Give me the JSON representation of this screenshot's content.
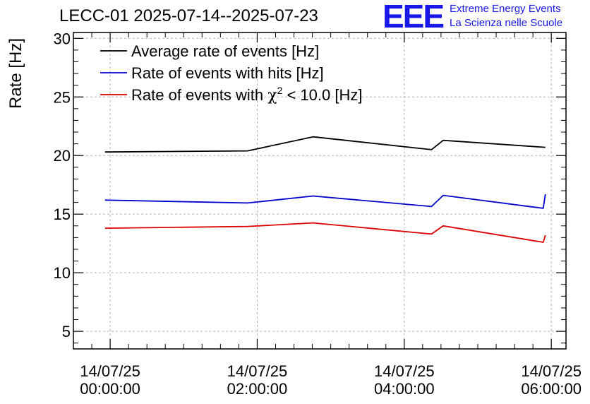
{
  "header": {
    "title": "LECC-01 2025-07-14--2025-07-23",
    "logo_letters": "EEE",
    "logo_line1": "Extreme Energy Events",
    "logo_line2": "La Scienza nelle Scuole"
  },
  "chart_data": {
    "type": "line",
    "title": "LECC-01 2025-07-14--2025-07-23",
    "xlabel": "",
    "ylabel": "Rate [Hz]",
    "ylim": [
      3.5,
      30.5
    ],
    "xlim": [
      -0.5,
      6.2
    ],
    "x_unit": "hours since 14/07/25 00:00:00",
    "grid": true,
    "legend_position": "top-left",
    "y_ticks": [
      5,
      10,
      15,
      20,
      25,
      30
    ],
    "x_ticks": [
      {
        "value": 0,
        "line1": "14/07/25",
        "line2": "00:00:00"
      },
      {
        "value": 2,
        "line1": "14/07/25",
        "line2": "02:00:00"
      },
      {
        "value": 4,
        "line1": "14/07/25",
        "line2": "04:00:00"
      },
      {
        "value": 6,
        "line1": "14/07/25",
        "line2": "06:00:00"
      }
    ],
    "series": [
      {
        "name": "Average rate of events [Hz]",
        "color": "#000000",
        "points": [
          [
            -0.07,
            20.3
          ],
          [
            1.87,
            20.4
          ],
          [
            2.76,
            21.6
          ],
          [
            4.37,
            20.5
          ],
          [
            4.53,
            21.3
          ],
          [
            5.92,
            20.7
          ]
        ]
      },
      {
        "name": "Rate of events with hits [Hz]",
        "color": "#0000cc",
        "points": [
          [
            -0.07,
            16.2
          ],
          [
            1.87,
            15.95
          ],
          [
            2.76,
            16.55
          ],
          [
            4.37,
            15.65
          ],
          [
            4.53,
            16.6
          ],
          [
            5.89,
            15.5
          ],
          [
            5.92,
            16.7
          ]
        ]
      },
      {
        "name": "Rate of events with χ² < 10.0 [Hz]",
        "name_prefix": "Rate of events with ",
        "name_chi": "χ",
        "name_sup": "2",
        "name_suffix": " < 10.0 [Hz]",
        "color": "#dd0000",
        "points": [
          [
            -0.07,
            13.8
          ],
          [
            1.87,
            13.95
          ],
          [
            2.76,
            14.25
          ],
          [
            4.37,
            13.3
          ],
          [
            4.53,
            14.0
          ],
          [
            5.89,
            12.6
          ],
          [
            5.92,
            13.2
          ]
        ]
      }
    ]
  }
}
